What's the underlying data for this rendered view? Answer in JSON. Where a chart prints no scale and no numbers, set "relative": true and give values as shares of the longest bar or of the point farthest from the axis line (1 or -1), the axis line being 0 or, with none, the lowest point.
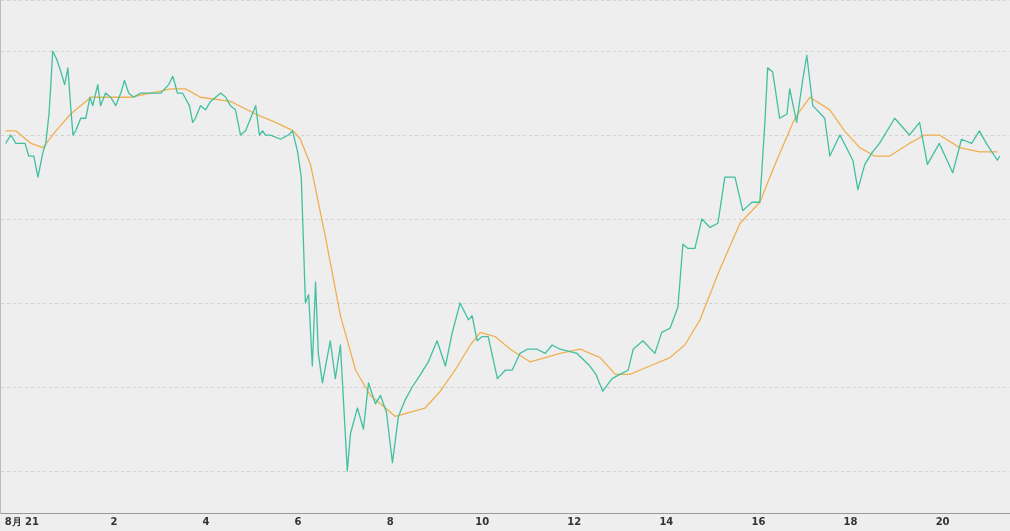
{
  "chart_data": {
    "type": "line",
    "relative": true,
    "grid": "y",
    "legend": false,
    "marker": "none",
    "line_style": "solid",
    "xlim": [
      -0.46,
      21.45
    ],
    "xticks": [
      {
        "value": 0,
        "label": "8月 21"
      },
      2,
      4,
      6,
      8,
      10,
      12,
      14,
      16,
      18,
      20
    ],
    "series": [
      {
        "color": "#40c0a0",
        "x": [
          -0.35,
          -0.24,
          -0.13,
          0.07,
          0.15,
          0.26,
          0.35,
          0.46,
          0.52,
          0.59,
          0.63,
          0.67,
          0.76,
          0.85,
          0.93,
          1.0,
          1.06,
          1.11,
          1.17,
          1.28,
          1.39,
          1.48,
          1.54,
          1.65,
          1.71,
          1.82,
          1.93,
          2.04,
          2.15,
          2.23,
          2.32,
          2.43,
          2.58,
          2.73,
          2.91,
          3.02,
          3.19,
          3.28,
          3.38,
          3.49,
          3.64,
          3.71,
          3.77,
          3.88,
          3.99,
          4.1,
          4.21,
          4.32,
          4.43,
          4.53,
          4.64,
          4.75,
          4.86,
          4.97,
          5.08,
          5.16,
          5.23,
          5.29,
          5.4,
          5.62,
          5.79,
          5.88,
          5.99,
          6.07,
          6.16,
          6.23,
          6.31,
          6.38,
          6.44,
          6.53,
          6.7,
          6.81,
          6.92,
          7.07,
          7.14,
          7.29,
          7.42,
          7.53,
          7.68,
          7.79,
          7.92,
          8.05,
          8.18,
          8.33,
          8.48,
          8.66,
          8.83,
          9.02,
          9.2,
          9.35,
          9.52,
          9.7,
          9.78,
          9.89,
          10.0,
          10.13,
          10.33,
          10.5,
          10.65,
          10.82,
          10.98,
          11.19,
          11.37,
          11.52,
          11.69,
          12.06,
          12.34,
          12.47,
          12.62,
          12.82,
          12.99,
          13.17,
          13.28,
          13.49,
          13.75,
          13.9,
          14.08,
          14.25,
          14.36,
          14.47,
          14.62,
          14.77,
          14.95,
          15.12,
          15.27,
          15.49,
          15.66,
          15.86,
          16.03,
          16.14,
          16.2,
          16.31,
          16.46,
          16.62,
          16.68,
          16.83,
          16.96,
          17.05,
          17.18,
          17.44,
          17.55,
          17.77,
          18.05,
          18.16,
          18.31,
          18.48,
          18.63,
          18.96,
          19.28,
          19.5,
          19.67,
          19.93,
          20.22,
          20.41,
          20.63,
          20.8,
          20.95,
          21.19,
          21.24
        ],
        "values": [
          0.78,
          0.8,
          0.78,
          0.78,
          0.75,
          0.75,
          0.7,
          0.76,
          0.78,
          0.85,
          0.92,
          1.0,
          0.98,
          0.95,
          0.92,
          0.96,
          0.87,
          0.8,
          0.81,
          0.84,
          0.84,
          0.89,
          0.87,
          0.92,
          0.87,
          0.9,
          0.89,
          0.87,
          0.9,
          0.93,
          0.9,
          0.89,
          0.9,
          0.9,
          0.9,
          0.9,
          0.92,
          0.94,
          0.9,
          0.9,
          0.87,
          0.83,
          0.84,
          0.87,
          0.86,
          0.88,
          0.89,
          0.9,
          0.89,
          0.87,
          0.86,
          0.8,
          0.81,
          0.84,
          0.87,
          0.8,
          0.81,
          0.8,
          0.8,
          0.79,
          0.8,
          0.81,
          0.76,
          0.7,
          0.4,
          0.42,
          0.25,
          0.45,
          0.28,
          0.21,
          0.31,
          0.22,
          0.3,
          0,
          0.09,
          0.15,
          0.1,
          0.21,
          0.16,
          0.18,
          0.14,
          0.02,
          0.13,
          0.17,
          0.2,
          0.23,
          0.26,
          0.31,
          0.25,
          0.33,
          0.4,
          0.36,
          0.37,
          0.31,
          0.32,
          0.32,
          0.22,
          0.24,
          0.24,
          0.28,
          0.29,
          0.29,
          0.28,
          0.3,
          0.29,
          0.28,
          0.25,
          0.23,
          0.19,
          0.22,
          0.23,
          0.24,
          0.29,
          0.31,
          0.28,
          0.33,
          0.34,
          0.39,
          0.54,
          0.53,
          0.53,
          0.6,
          0.58,
          0.59,
          0.7,
          0.7,
          0.62,
          0.64,
          0.64,
          0.83,
          0.96,
          0.95,
          0.84,
          0.85,
          0.91,
          0.83,
          0.93,
          0.99,
          0.87,
          0.84,
          0.75,
          0.8,
          0.74,
          0.67,
          0.73,
          0.76,
          0.78,
          0.84,
          0.8,
          0.83,
          0.73,
          0.78,
          0.71,
          0.79,
          0.78,
          0.81,
          0.78,
          0.74,
          0.75
        ]
      },
      {
        "color": "#f0b050",
        "x": [
          -0.35,
          -0.13,
          0.2,
          0.46,
          0.74,
          1.06,
          1.5,
          1.93,
          2.36,
          2.8,
          3.23,
          3.56,
          3.88,
          4.53,
          5.08,
          5.51,
          5.9,
          6.05,
          6.27,
          6.59,
          6.92,
          7.25,
          7.57,
          7.9,
          8.11,
          8.44,
          8.76,
          9.09,
          9.41,
          9.74,
          9.96,
          10.28,
          10.61,
          11.04,
          11.37,
          11.69,
          12.13,
          12.56,
          12.89,
          13.21,
          13.64,
          14.08,
          14.4,
          14.73,
          15.16,
          15.6,
          16.03,
          16.36,
          16.79,
          17.12,
          17.55,
          17.87,
          18.2,
          18.52,
          18.85,
          19.28,
          19.61,
          19.93,
          20.37,
          20.8,
          21.19
        ],
        "values": [
          0.81,
          0.81,
          0.78,
          0.77,
          0.81,
          0.85,
          0.89,
          0.89,
          0.89,
          0.9,
          0.91,
          0.91,
          0.89,
          0.88,
          0.85,
          0.83,
          0.81,
          0.79,
          0.73,
          0.56,
          0.37,
          0.24,
          0.18,
          0.15,
          0.13,
          0.14,
          0.15,
          0.19,
          0.24,
          0.3,
          0.33,
          0.32,
          0.29,
          0.26,
          0.27,
          0.28,
          0.29,
          0.27,
          0.23,
          0.23,
          0.25,
          0.27,
          0.3,
          0.36,
          0.48,
          0.59,
          0.64,
          0.73,
          0.84,
          0.89,
          0.86,
          0.81,
          0.77,
          0.75,
          0.75,
          0.78,
          0.8,
          0.8,
          0.77,
          0.76,
          0.76
        ]
      }
    ]
  }
}
